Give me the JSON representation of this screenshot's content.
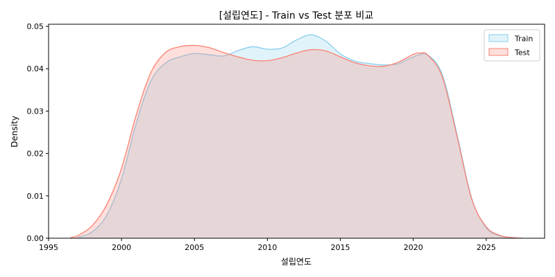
{
  "chart_data": {
    "type": "area",
    "title": "[설립연도] - Train vs Test 분포 비교",
    "xlabel": "설립연도",
    "ylabel": "Density",
    "xlim": [
      1995,
      2029
    ],
    "ylim": [
      0,
      0.0505
    ],
    "xticks": [
      1995,
      2000,
      2005,
      2010,
      2015,
      2020,
      2025
    ],
    "yticks": [
      0.0,
      0.01,
      0.02,
      0.03,
      0.04,
      0.05
    ],
    "ytick_labels": [
      "0.00",
      "0.01",
      "0.02",
      "0.03",
      "0.04",
      "0.05"
    ],
    "grid": false,
    "legend_position": "top-right",
    "series": [
      {
        "name": "Train",
        "color": "#87ceeb",
        "fill": "#87ceeb",
        "fill_opacity": 0.25,
        "x": [
          1997.0,
          1998.0,
          1999.0,
          2000.0,
          2001.0,
          2002.0,
          2003.0,
          2004.0,
          2005.0,
          2006.0,
          2007.0,
          2008.0,
          2009.0,
          2010.0,
          2011.0,
          2012.0,
          2013.0,
          2014.0,
          2015.0,
          2016.0,
          2017.0,
          2018.0,
          2019.0,
          2020.0,
          2021.0,
          2022.0,
          2023.0,
          2024.0,
          2025.0,
          2026.0,
          2027.0
        ],
        "y": [
          0.0002,
          0.0015,
          0.0055,
          0.014,
          0.027,
          0.037,
          0.0413,
          0.0428,
          0.0436,
          0.0433,
          0.043,
          0.0443,
          0.0452,
          0.0446,
          0.0449,
          0.0468,
          0.048,
          0.0465,
          0.0435,
          0.0418,
          0.0412,
          0.0409,
          0.0412,
          0.0428,
          0.0432,
          0.0385,
          0.0245,
          0.0095,
          0.0025,
          0.0005,
          0.0001
        ]
      },
      {
        "name": "Test",
        "color": "#fa8072",
        "fill": "#fa8072",
        "fill_opacity": 0.25,
        "x": [
          1996.5,
          1997.0,
          1998.0,
          1999.0,
          2000.0,
          2001.0,
          2002.0,
          2003.0,
          2004.0,
          2005.0,
          2006.0,
          2007.0,
          2008.0,
          2009.0,
          2010.0,
          2011.0,
          2012.0,
          2013.0,
          2014.0,
          2015.0,
          2016.0,
          2017.0,
          2018.0,
          2019.0,
          2020.0,
          2020.5,
          2021.0,
          2022.0,
          2023.0,
          2024.0,
          2025.0,
          2026.0,
          2027.0,
          2027.5
        ],
        "y": [
          0.0002,
          0.0006,
          0.003,
          0.008,
          0.0165,
          0.029,
          0.039,
          0.0438,
          0.0452,
          0.0455,
          0.045,
          0.0438,
          0.0428,
          0.042,
          0.0419,
          0.0426,
          0.0437,
          0.0445,
          0.0442,
          0.0428,
          0.0414,
          0.0407,
          0.0406,
          0.0416,
          0.0434,
          0.0437,
          0.0432,
          0.038,
          0.024,
          0.0093,
          0.0027,
          0.0006,
          0.0001,
          0.0
        ]
      }
    ]
  }
}
